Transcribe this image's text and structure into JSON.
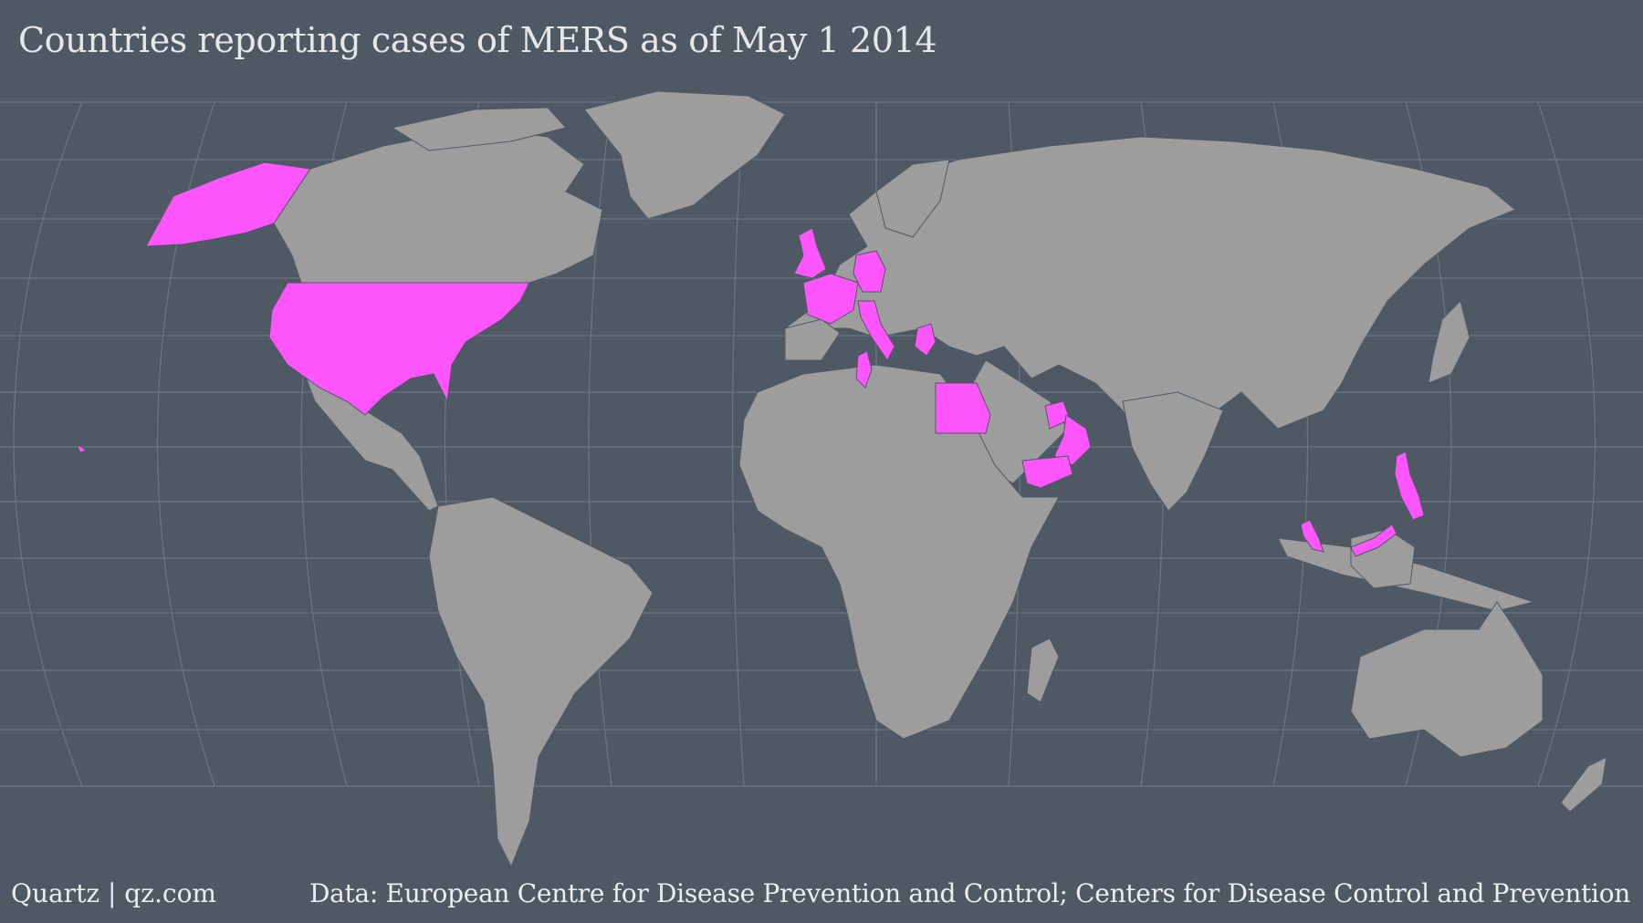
{
  "title": "Countries reporting cases of MERS as of May 1 2014",
  "credit": "Quartz | qz.com",
  "source": "Data: European Centre for Disease Prevention and Control; Centers for Disease Control and Prevention",
  "colors": {
    "background": "#4f5964",
    "land": "#9d9d9d",
    "highlight": "#ff55ff",
    "graticule": "#6d7680",
    "text": "#e6e7e9"
  },
  "map": {
    "projection": "Robinson-like world map",
    "graticule": true,
    "highlighted_countries": [
      "United States",
      "United Kingdom",
      "France",
      "Germany",
      "Italy",
      "Greece",
      "Tunisia",
      "Egypt",
      "United Arab Emirates",
      "Oman",
      "Yemen",
      "Malaysia",
      "Philippines"
    ]
  }
}
